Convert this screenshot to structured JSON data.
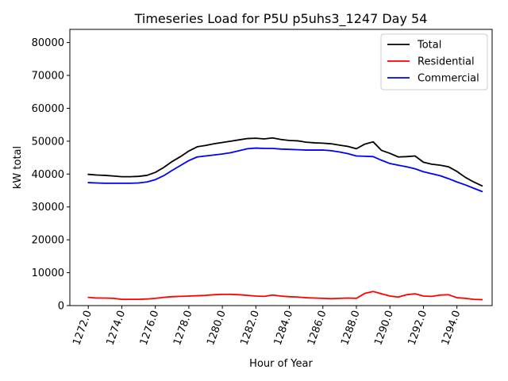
{
  "chart_data": {
    "type": "line",
    "title": "Timeseries Load for P5U p5uhs3_1247  Day 54",
    "xlabel": "Hour of Year",
    "ylabel": "kW total",
    "xlim": [
      1270.9,
      1296.1
    ],
    "ylim": [
      0,
      84000
    ],
    "xticks": [
      1272,
      1274,
      1276,
      1278,
      1280,
      1282,
      1284,
      1286,
      1288,
      1290,
      1292,
      1294
    ],
    "xtick_labels": [
      "1272.0",
      "1274.0",
      "1276.0",
      "1278.0",
      "1280.0",
      "1282.0",
      "1284.0",
      "1286.0",
      "1288.0",
      "1290.0",
      "1292.0",
      "1294.0"
    ],
    "yticks": [
      0,
      10000,
      20000,
      30000,
      40000,
      50000,
      60000,
      70000,
      80000
    ],
    "ytick_labels": [
      "0",
      "10000",
      "20000",
      "30000",
      "40000",
      "50000",
      "60000",
      "70000",
      "80000"
    ],
    "legend_position": "top-right",
    "x": [
      1272,
      1272.5,
      1273,
      1273.5,
      1274,
      1274.5,
      1275,
      1275.5,
      1276,
      1276.5,
      1277,
      1277.5,
      1278,
      1278.5,
      1279,
      1279.5,
      1280,
      1280.5,
      1281,
      1281.5,
      1282,
      1282.5,
      1283,
      1283.5,
      1284,
      1284.5,
      1285,
      1285.5,
      1286,
      1286.5,
      1287,
      1287.5,
      1288,
      1288.5,
      1289,
      1289.5,
      1290,
      1290.5,
      1291,
      1291.5,
      1292,
      1292.5,
      1293,
      1293.5,
      1294,
      1294.5,
      1295,
      1295.5
    ],
    "series": [
      {
        "name": "Total",
        "color": "#000000",
        "values": [
          39900,
          39700,
          39600,
          39400,
          39200,
          39200,
          39300,
          39600,
          40500,
          42000,
          43800,
          45300,
          47000,
          48300,
          48700,
          49200,
          49600,
          50000,
          50400,
          50800,
          50900,
          50700,
          51000,
          50500,
          50200,
          50100,
          49700,
          49500,
          49400,
          49200,
          48800,
          48400,
          47700,
          49100,
          49800,
          47200,
          46300,
          45200,
          45300,
          45500,
          43600,
          43000,
          42700,
          42200,
          40800,
          39000,
          37600,
          36400
        ]
      },
      {
        "name": "Residential",
        "color": "#ff0000",
        "values": [
          2500,
          2300,
          2300,
          2200,
          1900,
          1900,
          1900,
          2000,
          2200,
          2500,
          2700,
          2800,
          2900,
          3000,
          3100,
          3300,
          3400,
          3400,
          3300,
          3100,
          2900,
          2800,
          3200,
          2900,
          2700,
          2600,
          2400,
          2300,
          2200,
          2100,
          2200,
          2300,
          2200,
          3700,
          4300,
          3600,
          2900,
          2600,
          3300,
          3600,
          2900,
          2800,
          3200,
          3300,
          2400,
          2200,
          1900,
          1800
        ]
      },
      {
        "name": "Commercial",
        "color": "#0000ff",
        "values": [
          37400,
          37300,
          37200,
          37200,
          37200,
          37200,
          37300,
          37600,
          38300,
          39500,
          41100,
          42600,
          44100,
          45200,
          45500,
          45800,
          46100,
          46500,
          47100,
          47700,
          47900,
          47800,
          47800,
          47600,
          47500,
          47400,
          47300,
          47300,
          47300,
          47100,
          46700,
          46200,
          45500,
          45400,
          45300,
          44200,
          43200,
          42700,
          42200,
          41600,
          40700,
          40100,
          39500,
          38600,
          37600,
          36700,
          35700,
          34700
        ]
      }
    ]
  }
}
